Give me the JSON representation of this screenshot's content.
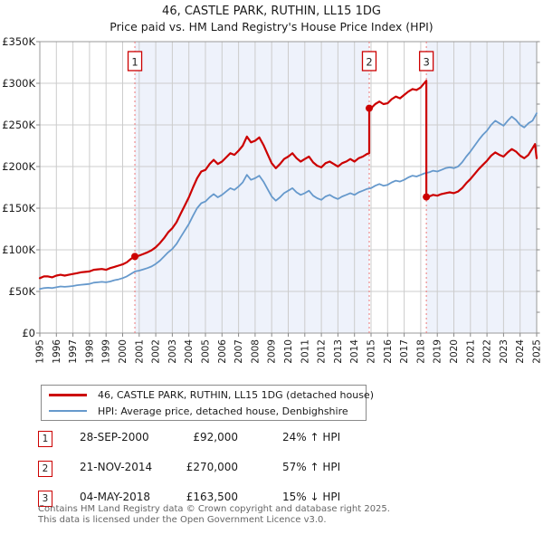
{
  "title": "46, CASTLE PARK, RUTHIN, LL15 1DG",
  "subtitle": "Price paid vs. HM Land Registry's House Price Index (HPI)",
  "chart_data": {
    "type": "line",
    "x_range": [
      1995,
      2025
    ],
    "y_range": [
      0,
      350
    ],
    "y_unit": "£K",
    "grid": true,
    "legend_position": "bottom",
    "y_tick_labels": [
      "£0",
      "£50K",
      "£100K",
      "£150K",
      "£200K",
      "£250K",
      "£300K",
      "£350K"
    ],
    "x_tick_labels": [
      "1995",
      "1996",
      "1997",
      "1998",
      "1999",
      "2000",
      "2001",
      "2002",
      "2003",
      "2004",
      "2005",
      "2006",
      "2007",
      "2008",
      "2009",
      "2010",
      "2011",
      "2012",
      "2013",
      "2014",
      "2015",
      "2016",
      "2017",
      "2018",
      "2019",
      "2020",
      "2021",
      "2022",
      "2023",
      "2024",
      "2025"
    ],
    "colors": {
      "property_line": "#cc0000",
      "hpi_line": "#6699cc",
      "shade": "#eef2fb",
      "grid": "#cccccc",
      "frame": "#999999",
      "event_line": "#ee7777",
      "tick_text": "#1a1a1a"
    },
    "shaded_regions": [
      [
        2000.74,
        2014.89
      ],
      [
        2018.34,
        2025
      ]
    ],
    "markers": [
      {
        "label": "1",
        "x": 2000.74,
        "y": 92
      },
      {
        "label": "2",
        "x": 2014.89,
        "y": 270
      },
      {
        "label": "3",
        "x": 2018.34,
        "y": 163.5
      }
    ],
    "series": [
      {
        "name": "46, CASTLE PARK, RUTHIN, LL15 1DG (detached house)",
        "color": "#cc0000",
        "points": [
          [
            1995.0,
            66
          ],
          [
            1995.25,
            68
          ],
          [
            1995.5,
            68
          ],
          [
            1995.75,
            67
          ],
          [
            1996.0,
            69
          ],
          [
            1996.25,
            70
          ],
          [
            1996.5,
            69
          ],
          [
            1996.75,
            70
          ],
          [
            1997.0,
            71
          ],
          [
            1997.25,
            72
          ],
          [
            1997.5,
            73
          ],
          [
            1997.75,
            73.5
          ],
          [
            1998.0,
            74
          ],
          [
            1998.25,
            76
          ],
          [
            1998.5,
            76.5
          ],
          [
            1998.75,
            77
          ],
          [
            1999.0,
            76
          ],
          [
            1999.25,
            78
          ],
          [
            1999.5,
            79.5
          ],
          [
            1999.75,
            81
          ],
          [
            2000.0,
            82.5
          ],
          [
            2000.25,
            85
          ],
          [
            2000.5,
            89
          ],
          [
            2000.74,
            92
          ],
          [
            2001.0,
            93
          ],
          [
            2001.25,
            95
          ],
          [
            2001.5,
            97
          ],
          [
            2001.75,
            99.5
          ],
          [
            2002.0,
            103
          ],
          [
            2002.25,
            108
          ],
          [
            2002.5,
            114
          ],
          [
            2002.75,
            121
          ],
          [
            2003.0,
            126
          ],
          [
            2003.25,
            133
          ],
          [
            2003.5,
            143
          ],
          [
            2003.75,
            153
          ],
          [
            2004.0,
            163
          ],
          [
            2004.25,
            175
          ],
          [
            2004.5,
            186
          ],
          [
            2004.75,
            194
          ],
          [
            2005.0,
            196
          ],
          [
            2005.25,
            203
          ],
          [
            2005.5,
            208
          ],
          [
            2005.75,
            203
          ],
          [
            2006.0,
            206
          ],
          [
            2006.25,
            211
          ],
          [
            2006.5,
            216
          ],
          [
            2006.75,
            214
          ],
          [
            2007.0,
            219
          ],
          [
            2007.25,
            225
          ],
          [
            2007.5,
            236
          ],
          [
            2007.75,
            229
          ],
          [
            2008.0,
            231
          ],
          [
            2008.25,
            235
          ],
          [
            2008.5,
            226
          ],
          [
            2008.75,
            215
          ],
          [
            2009.0,
            204
          ],
          [
            2009.25,
            198
          ],
          [
            2009.5,
            203
          ],
          [
            2009.75,
            209
          ],
          [
            2010.0,
            212
          ],
          [
            2010.25,
            216
          ],
          [
            2010.5,
            210
          ],
          [
            2010.75,
            206
          ],
          [
            2011.0,
            209
          ],
          [
            2011.25,
            212
          ],
          [
            2011.5,
            205
          ],
          [
            2011.75,
            201
          ],
          [
            2012.0,
            199
          ],
          [
            2012.25,
            204
          ],
          [
            2012.5,
            206
          ],
          [
            2012.75,
            203
          ],
          [
            2013.0,
            200
          ],
          [
            2013.25,
            204
          ],
          [
            2013.5,
            206
          ],
          [
            2013.75,
            209
          ],
          [
            2014.0,
            206
          ],
          [
            2014.25,
            210
          ],
          [
            2014.5,
            212
          ],
          [
            2014.75,
            215
          ],
          [
            2014.89,
            216
          ],
          [
            2014.89,
            270
          ],
          [
            2015.0,
            270
          ],
          [
            2015.25,
            275
          ],
          [
            2015.5,
            278
          ],
          [
            2015.75,
            275
          ],
          [
            2016.0,
            276
          ],
          [
            2016.25,
            281
          ],
          [
            2016.5,
            284
          ],
          [
            2016.75,
            282
          ],
          [
            2017.0,
            286
          ],
          [
            2017.25,
            290
          ],
          [
            2017.5,
            293
          ],
          [
            2017.75,
            292
          ],
          [
            2018.0,
            295
          ],
          [
            2018.25,
            301
          ],
          [
            2018.34,
            303
          ],
          [
            2018.34,
            163.5
          ],
          [
            2018.5,
            164
          ],
          [
            2018.75,
            166
          ],
          [
            2019.0,
            165
          ],
          [
            2019.25,
            167
          ],
          [
            2019.5,
            168
          ],
          [
            2019.75,
            169
          ],
          [
            2020.0,
            168
          ],
          [
            2020.25,
            170
          ],
          [
            2020.5,
            174
          ],
          [
            2020.75,
            180
          ],
          [
            2021.0,
            185
          ],
          [
            2021.25,
            191
          ],
          [
            2021.5,
            197
          ],
          [
            2021.75,
            202
          ],
          [
            2022.0,
            207
          ],
          [
            2022.25,
            213
          ],
          [
            2022.5,
            217
          ],
          [
            2022.75,
            214
          ],
          [
            2023.0,
            212
          ],
          [
            2023.25,
            217
          ],
          [
            2023.5,
            221
          ],
          [
            2023.75,
            218
          ],
          [
            2024.0,
            213
          ],
          [
            2024.25,
            210
          ],
          [
            2024.5,
            214
          ],
          [
            2024.75,
            222
          ],
          [
            2024.9,
            227
          ],
          [
            2025.0,
            210
          ]
        ]
      },
      {
        "name": "HPI: Average price, detached house, Denbighshire",
        "color": "#6699cc",
        "points": [
          [
            1995.0,
            53
          ],
          [
            1995.25,
            54
          ],
          [
            1995.5,
            54.5
          ],
          [
            1995.75,
            54
          ],
          [
            1996.0,
            55
          ],
          [
            1996.25,
            56
          ],
          [
            1996.5,
            55.5
          ],
          [
            1996.75,
            56
          ],
          [
            1997.0,
            56.5
          ],
          [
            1997.25,
            57.5
          ],
          [
            1997.5,
            58
          ],
          [
            1997.75,
            58.5
          ],
          [
            1998.0,
            59
          ],
          [
            1998.25,
            60.5
          ],
          [
            1998.5,
            61
          ],
          [
            1998.75,
            61.5
          ],
          [
            1999.0,
            61
          ],
          [
            1999.25,
            62
          ],
          [
            1999.5,
            63.5
          ],
          [
            1999.75,
            64.5
          ],
          [
            2000.0,
            66
          ],
          [
            2000.25,
            68
          ],
          [
            2000.5,
            71
          ],
          [
            2000.75,
            74
          ],
          [
            2001.0,
            75
          ],
          [
            2001.25,
            76.5
          ],
          [
            2001.5,
            78
          ],
          [
            2001.75,
            80
          ],
          [
            2002.0,
            83
          ],
          [
            2002.25,
            87
          ],
          [
            2002.5,
            92
          ],
          [
            2002.75,
            97
          ],
          [
            2003.0,
            101
          ],
          [
            2003.25,
            107
          ],
          [
            2003.5,
            115
          ],
          [
            2003.75,
            123
          ],
          [
            2004.0,
            131
          ],
          [
            2004.25,
            141
          ],
          [
            2004.5,
            150
          ],
          [
            2004.75,
            156
          ],
          [
            2005.0,
            158
          ],
          [
            2005.25,
            163
          ],
          [
            2005.5,
            167
          ],
          [
            2005.75,
            163
          ],
          [
            2006.0,
            166
          ],
          [
            2006.25,
            170
          ],
          [
            2006.5,
            174
          ],
          [
            2006.75,
            172
          ],
          [
            2007.0,
            176
          ],
          [
            2007.25,
            181
          ],
          [
            2007.5,
            190
          ],
          [
            2007.75,
            184
          ],
          [
            2008.0,
            186
          ],
          [
            2008.25,
            189
          ],
          [
            2008.5,
            182
          ],
          [
            2008.75,
            173
          ],
          [
            2009.0,
            164
          ],
          [
            2009.25,
            159
          ],
          [
            2009.5,
            163
          ],
          [
            2009.75,
            168
          ],
          [
            2010.0,
            171
          ],
          [
            2010.25,
            174
          ],
          [
            2010.5,
            169
          ],
          [
            2010.75,
            166
          ],
          [
            2011.0,
            168
          ],
          [
            2011.25,
            171
          ],
          [
            2011.5,
            165
          ],
          [
            2011.75,
            162
          ],
          [
            2012.0,
            160
          ],
          [
            2012.25,
            164
          ],
          [
            2012.5,
            166
          ],
          [
            2012.75,
            163
          ],
          [
            2013.0,
            161
          ],
          [
            2013.25,
            164
          ],
          [
            2013.5,
            166
          ],
          [
            2013.75,
            168
          ],
          [
            2014.0,
            166
          ],
          [
            2014.25,
            169
          ],
          [
            2014.5,
            171
          ],
          [
            2014.75,
            173
          ],
          [
            2015.0,
            174
          ],
          [
            2015.25,
            177
          ],
          [
            2015.5,
            179
          ],
          [
            2015.75,
            177
          ],
          [
            2016.0,
            178
          ],
          [
            2016.25,
            181
          ],
          [
            2016.5,
            183
          ],
          [
            2016.75,
            182
          ],
          [
            2017.0,
            184
          ],
          [
            2017.25,
            187
          ],
          [
            2017.5,
            189
          ],
          [
            2017.75,
            188
          ],
          [
            2018.0,
            190
          ],
          [
            2018.25,
            192
          ],
          [
            2018.5,
            193
          ],
          [
            2018.75,
            195
          ],
          [
            2019.0,
            194
          ],
          [
            2019.25,
            196
          ],
          [
            2019.5,
            198
          ],
          [
            2019.75,
            199
          ],
          [
            2020.0,
            198
          ],
          [
            2020.25,
            200
          ],
          [
            2020.5,
            205
          ],
          [
            2020.75,
            212
          ],
          [
            2021.0,
            218
          ],
          [
            2021.25,
            225
          ],
          [
            2021.5,
            232
          ],
          [
            2021.75,
            238
          ],
          [
            2022.0,
            243
          ],
          [
            2022.25,
            250
          ],
          [
            2022.5,
            255
          ],
          [
            2022.75,
            252
          ],
          [
            2023.0,
            249
          ],
          [
            2023.25,
            255
          ],
          [
            2023.5,
            260
          ],
          [
            2023.75,
            256
          ],
          [
            2024.0,
            250
          ],
          [
            2024.25,
            247
          ],
          [
            2024.5,
            252
          ],
          [
            2024.75,
            255
          ],
          [
            2025.0,
            264
          ]
        ]
      }
    ]
  },
  "legend": {
    "entries": [
      {
        "label": "46, CASTLE PARK, RUTHIN, LL15 1DG (detached house)",
        "color": "#cc0000"
      },
      {
        "label": "HPI: Average price, detached house, Denbighshire",
        "color": "#6699cc"
      }
    ]
  },
  "transactions": [
    {
      "n": "1",
      "date": "28-SEP-2000",
      "price": "£92,000",
      "hpi": "24% ↑ HPI"
    },
    {
      "n": "2",
      "date": "21-NOV-2014",
      "price": "£270,000",
      "hpi": "57% ↑ HPI"
    },
    {
      "n": "3",
      "date": "04-MAY-2018",
      "price": "£163,500",
      "hpi": "15% ↓ HPI"
    }
  ],
  "footer": {
    "line1": "Contains HM Land Registry data © Crown copyright and database right 2025.",
    "line2": "This data is licensed under the Open Government Licence v3.0."
  }
}
